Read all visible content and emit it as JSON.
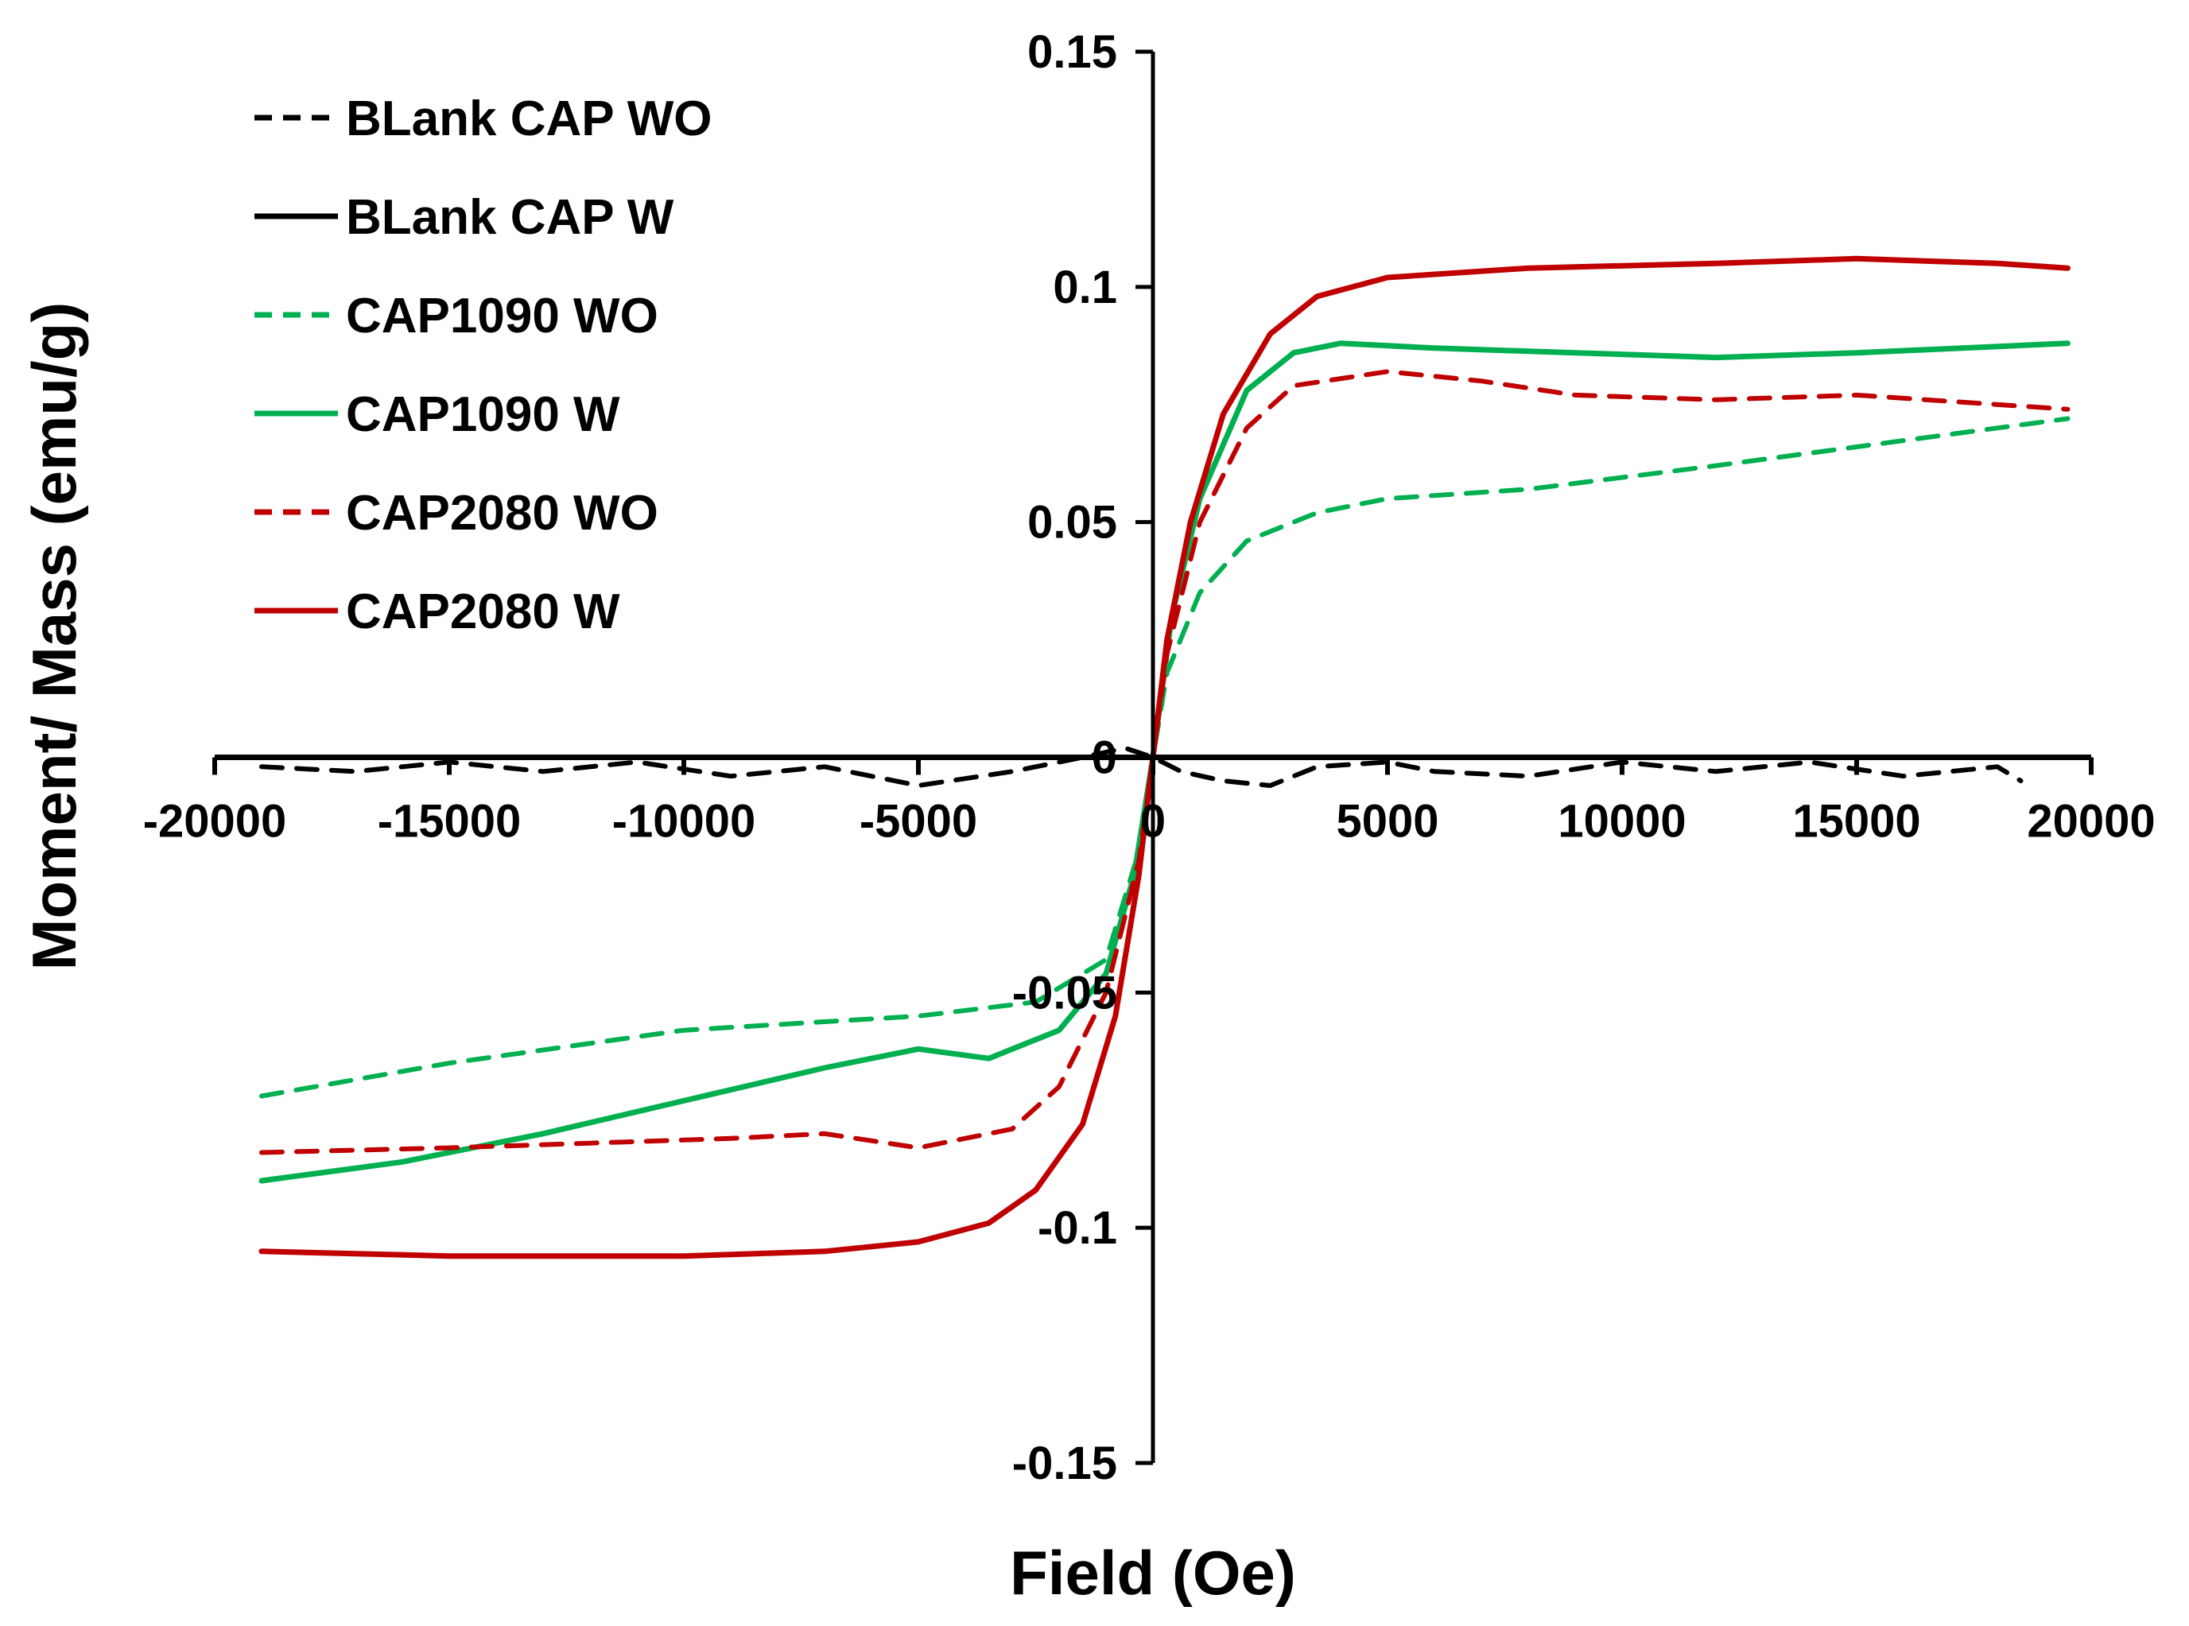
{
  "chart_data": {
    "type": "line",
    "title": "",
    "xlabel": "Field (Oe)",
    "ylabel": "Moment/ Mass (emu/g)",
    "xlim": [
      -20000,
      20000
    ],
    "ylim": [
      -0.15,
      0.15
    ],
    "x_ticks": [
      -20000,
      -15000,
      -10000,
      -5000,
      0,
      5000,
      10000,
      15000,
      20000
    ],
    "x_tick_labels": [
      "-20000",
      "-15000",
      "-10000",
      "-5000",
      "0",
      "5000",
      "10000",
      "15000",
      "20000"
    ],
    "y_ticks": [
      0.15,
      0.1,
      0.05,
      0,
      -0.05,
      -0.1,
      -0.15
    ],
    "y_tick_labels": [
      "0.15",
      "0.1",
      "0.05",
      "0",
      "-0.05",
      "-0.1",
      "-0.15"
    ],
    "legend_position": "top-left",
    "series": [
      {
        "name": "BLank CAP WO",
        "color": "#000000",
        "style": "dashed",
        "points": [
          [
            -19000,
            -0.002
          ],
          [
            -17000,
            -0.003
          ],
          [
            -15000,
            -0.001
          ],
          [
            -13000,
            -0.003
          ],
          [
            -11000,
            -0.001
          ],
          [
            -9000,
            -0.004
          ],
          [
            -7000,
            -0.002
          ],
          [
            -5000,
            -0.006
          ],
          [
            -3000,
            -0.003
          ],
          [
            -1500,
            0.0
          ],
          [
            -600,
            0.002
          ],
          [
            0,
            0.0
          ],
          [
            600,
            -0.003
          ],
          [
            1500,
            -0.005
          ],
          [
            2500,
            -0.006
          ],
          [
            3500,
            -0.002
          ],
          [
            5000,
            -0.001
          ],
          [
            6000,
            -0.003
          ],
          [
            8000,
            -0.004
          ],
          [
            10000,
            -0.001
          ],
          [
            12000,
            -0.003
          ],
          [
            14000,
            -0.001
          ],
          [
            16000,
            -0.004
          ],
          [
            18000,
            -0.002
          ],
          [
            18500,
            -0.005
          ]
        ]
      },
      {
        "name": "BLank CAP W",
        "color": "#000000",
        "style": "solid",
        "points": [
          [
            -19000,
            0.0
          ],
          [
            -10000,
            0.0
          ],
          [
            0,
            0.0
          ],
          [
            10000,
            0.0
          ],
          [
            19500,
            0.0
          ]
        ]
      },
      {
        "name": "CAP1090 WO",
        "color": "#00b050",
        "style": "dashed",
        "points": [
          [
            -19000,
            -0.072
          ],
          [
            -15000,
            -0.065
          ],
          [
            -10000,
            -0.058
          ],
          [
            -5000,
            -0.055
          ],
          [
            -2500,
            -0.052
          ],
          [
            -1000,
            -0.043
          ],
          [
            -300,
            -0.02
          ],
          [
            0,
            0.0
          ],
          [
            300,
            0.018
          ],
          [
            1000,
            0.035
          ],
          [
            2000,
            0.046
          ],
          [
            3500,
            0.052
          ],
          [
            5000,
            0.055
          ],
          [
            8000,
            0.057
          ],
          [
            12000,
            0.062
          ],
          [
            15000,
            0.066
          ],
          [
            18000,
            0.07
          ],
          [
            19500,
            0.072
          ]
        ]
      },
      {
        "name": "CAP1090 W",
        "color": "#00b050",
        "style": "solid",
        "points": [
          [
            -19000,
            -0.09
          ],
          [
            -16000,
            -0.086
          ],
          [
            -13000,
            -0.08
          ],
          [
            -10000,
            -0.073
          ],
          [
            -7000,
            -0.066
          ],
          [
            -5000,
            -0.062
          ],
          [
            -3500,
            -0.064
          ],
          [
            -2000,
            -0.058
          ],
          [
            -1000,
            -0.046
          ],
          [
            -400,
            -0.025
          ],
          [
            0,
            0.0
          ],
          [
            400,
            0.03
          ],
          [
            1000,
            0.055
          ],
          [
            2000,
            0.078
          ],
          [
            3000,
            0.086
          ],
          [
            4000,
            0.088
          ],
          [
            6000,
            0.087
          ],
          [
            9000,
            0.086
          ],
          [
            12000,
            0.085
          ],
          [
            15000,
            0.086
          ],
          [
            19500,
            0.088
          ]
        ]
      },
      {
        "name": "CAP2080 WO",
        "color": "#c00000",
        "style": "dashed",
        "points": [
          [
            -19000,
            -0.084
          ],
          [
            -15000,
            -0.083
          ],
          [
            -12000,
            -0.082
          ],
          [
            -9000,
            -0.081
          ],
          [
            -7000,
            -0.08
          ],
          [
            -5000,
            -0.083
          ],
          [
            -3000,
            -0.079
          ],
          [
            -2000,
            -0.07
          ],
          [
            -1000,
            -0.05
          ],
          [
            -300,
            -0.022
          ],
          [
            0,
            0.0
          ],
          [
            300,
            0.022
          ],
          [
            1000,
            0.05
          ],
          [
            2000,
            0.07
          ],
          [
            3000,
            0.079
          ],
          [
            5000,
            0.082
          ],
          [
            7000,
            0.08
          ],
          [
            9000,
            0.077
          ],
          [
            12000,
            0.076
          ],
          [
            15000,
            0.077
          ],
          [
            19500,
            0.074
          ]
        ]
      },
      {
        "name": "CAP2080 W",
        "color": "#c00000",
        "style": "solid",
        "points": [
          [
            -19000,
            -0.105
          ],
          [
            -15000,
            -0.106
          ],
          [
            -10000,
            -0.106
          ],
          [
            -7000,
            -0.105
          ],
          [
            -5000,
            -0.103
          ],
          [
            -3500,
            -0.099
          ],
          [
            -2500,
            -0.092
          ],
          [
            -1500,
            -0.078
          ],
          [
            -800,
            -0.055
          ],
          [
            -300,
            -0.025
          ],
          [
            0,
            0.0
          ],
          [
            300,
            0.025
          ],
          [
            800,
            0.05
          ],
          [
            1500,
            0.073
          ],
          [
            2500,
            0.09
          ],
          [
            3500,
            0.098
          ],
          [
            5000,
            0.102
          ],
          [
            8000,
            0.104
          ],
          [
            12000,
            0.105
          ],
          [
            15000,
            0.106
          ],
          [
            18000,
            0.105
          ],
          [
            19500,
            0.104
          ]
        ]
      }
    ]
  }
}
